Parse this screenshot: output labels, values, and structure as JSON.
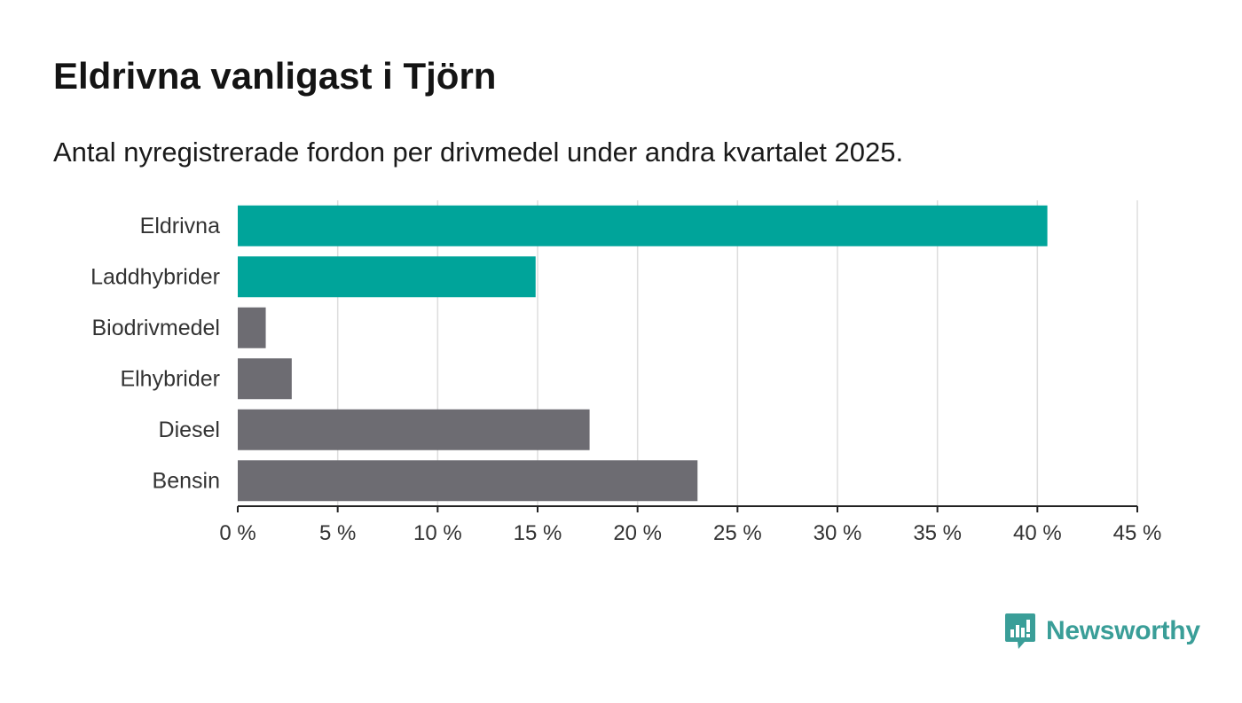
{
  "title": "Eldrivna vanligast i Tjörn",
  "subtitle": "Antal nyregistrerade fordon per drivmedel under andra kvartalet 2025.",
  "brand": {
    "name": "Newsworthy",
    "icon": "newsworthy-logo-icon",
    "color": "#3a9e98"
  },
  "colors": {
    "highlight": "#00a49a",
    "default": "#6d6c72",
    "grid": "#dddddd",
    "axis": "#222222"
  },
  "chart_data": {
    "type": "bar",
    "orientation": "horizontal",
    "categories": [
      "Eldrivna",
      "Laddhybrider",
      "Biodrivmedel",
      "Elhybrider",
      "Diesel",
      "Bensin"
    ],
    "values": [
      40.5,
      14.9,
      1.4,
      2.7,
      17.6,
      23.0
    ],
    "highlighted": [
      true,
      true,
      false,
      false,
      false,
      false
    ],
    "unit": "%",
    "xlim": [
      0,
      45
    ],
    "xticks": [
      0,
      5,
      10,
      15,
      20,
      25,
      30,
      35,
      40,
      45
    ],
    "xtick_labels": [
      "0 %",
      "5 %",
      "10 %",
      "15 %",
      "20 %",
      "25 %",
      "30 %",
      "35 %",
      "40 %",
      "45 %"
    ],
    "grid": true,
    "legend": "none"
  }
}
